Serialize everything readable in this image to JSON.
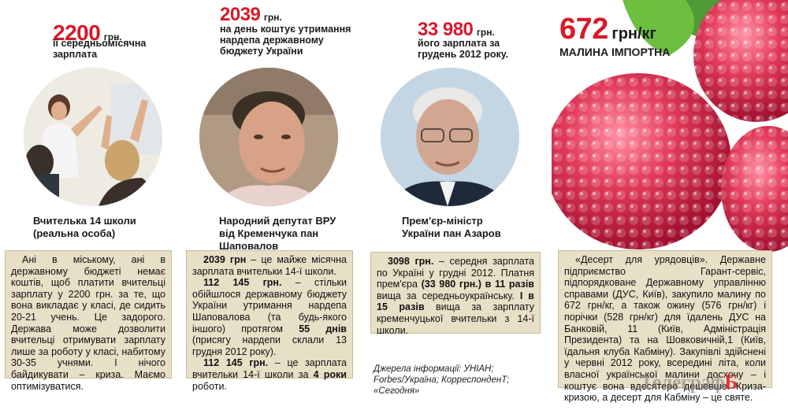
{
  "col1": {
    "amount": "2200",
    "unit": "грн.",
    "sub1": "її середньомісячна",
    "sub2": "зарплата",
    "caption1": "Вчителька 14 школи",
    "caption2": "(реальна особа)",
    "box": "Ані в міському, ані в державному бюджеті немає коштів, щоб платити вчительці зарплату у 2200 грн. за те, що вона викладає у класі, де сидить 20-21 учень. Це задорого. Держава може дозволити вчительці отримувати зарплату лише за роботу у класі, набитому 30-35 учнями. І нічого байдикувати – криза. Маємо оптимізуватися."
  },
  "col2": {
    "amount": "2039",
    "unit": "грн.",
    "sub1": "на день коштує утримання",
    "sub2": "нардепа державному",
    "sub3": "бюджету України",
    "caption1": "Народний депутат ВРУ",
    "caption2": "від Кременчука пан",
    "caption3": "Шаповалов",
    "p1_bold": "2039 грн",
    "p1": " – це майже місячна зарплата вчительки 14-ї школи.",
    "p2_bold": "112 145 грн.",
    "p2a": " – стільки обійшлося державному бюджету України утримання нардепа Шаповалова (та будь-якого іншого) протягом ",
    "p2_days": "55 днів",
    "p2b": " (присягу нардепи склали 13 грудня 2012 року).",
    "p3_bold": "112 145 грн.",
    "p3a": " – це зарплата вчительки 14-ї школи за ",
    "p3_years": "4 роки",
    "p3b": " роботи."
  },
  "col3": {
    "amount": "33 980",
    "unit": "грн.",
    "sub1": "його зарплата за",
    "sub2": "грудень 2012 року.",
    "caption1": "Прем'єр-міністр",
    "caption2": "України пан Азаров",
    "p1_bold": "3098 грн.",
    "p1a": " – середня зарплата по Україні у грудні 2012. Платня прем'єра ",
    "p1_salary": "(33 980 грн.)",
    "p1b": " ",
    "p1_times": "в 11 разів",
    "p1c": " вища за середньоукраїнську. ",
    "p1_times2": "І в 15 разів",
    "p1d": " вища за зарплату кременчуцької вчительки з 14-ї школи.",
    "source1": "Джерела інформації: УНІАН;",
    "source2": "Forbes/Україна; КорреспонденТ; «Сегодня»"
  },
  "col4": {
    "amount": "672",
    "unit": "грн/кг",
    "sub1": "МАЛИНА ІМПОРТНА",
    "box": "«Десерт для урядовців». Державне підприємство Гарант-сервіс, підпорядковане Державному управлінню справами (ДУС, Київ), закупило малину по 672 грн/кг, а також ожину (576 грн/кг) і порічки (528 грн/кг) для їдалень ДУС на Банковій, 11 (Київ, Адміністрація Президента) та на Шовковичній,1 (Київ, їдальня клуба Кабміну). Закупівлі здійснені у червні 2012 року, всередині літа, коли власної української малини досхочу – і коштує вона вдесятеро дешевше. Криза-кризою, а десерт для Кабміну – це святе."
  },
  "logo": {
    "part1": "Телеграф",
    "part2": "Б"
  },
  "colors": {
    "accent": "#d7192a",
    "box_bg": "#e8dfc7"
  }
}
